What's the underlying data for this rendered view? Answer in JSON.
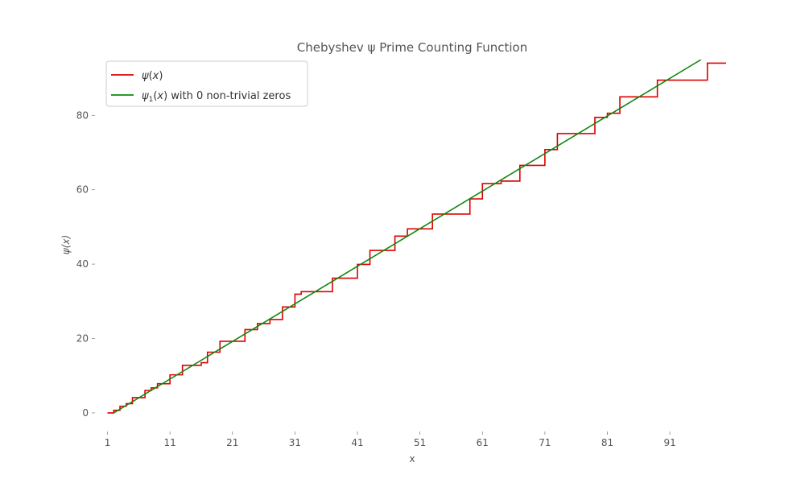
{
  "chart_data": {
    "type": "line",
    "title": "Chebyshev ψ Prime Counting Function",
    "xlabel": "x",
    "ylabel": "ψ(x)",
    "xlim": [
      -1,
      100
    ],
    "ylim": [
      -5,
      95
    ],
    "xticks": [
      1,
      11,
      21,
      31,
      41,
      51,
      61,
      71,
      81,
      91
    ],
    "yticks": [
      0,
      20,
      40,
      60,
      80
    ],
    "grid": false,
    "legend_position": "top-left",
    "series": [
      {
        "name": "ψ(x)",
        "label_italic_base": "ψ",
        "label_italic_arg": "x",
        "color": "#dd0000",
        "style": "step",
        "jumps": [
          {
            "x": 1,
            "y": 0.0
          },
          {
            "x": 2,
            "y": 0.693
          },
          {
            "x": 3,
            "y": 1.792
          },
          {
            "x": 4,
            "y": 2.485
          },
          {
            "x": 5,
            "y": 4.094
          },
          {
            "x": 7,
            "y": 6.04
          },
          {
            "x": 8,
            "y": 6.733
          },
          {
            "x": 9,
            "y": 7.832
          },
          {
            "x": 11,
            "y": 10.23
          },
          {
            "x": 13,
            "y": 12.795
          },
          {
            "x": 16,
            "y": 13.488
          },
          {
            "x": 17,
            "y": 16.321
          },
          {
            "x": 19,
            "y": 19.265
          },
          {
            "x": 23,
            "y": 22.401
          },
          {
            "x": 25,
            "y": 24.01
          },
          {
            "x": 27,
            "y": 25.108
          },
          {
            "x": 29,
            "y": 28.476
          },
          {
            "x": 31,
            "y": 31.91
          },
          {
            "x": 32,
            "y": 32.603
          },
          {
            "x": 37,
            "y": 36.214
          },
          {
            "x": 41,
            "y": 39.928
          },
          {
            "x": 43,
            "y": 43.689
          },
          {
            "x": 47,
            "y": 47.539
          },
          {
            "x": 49,
            "y": 49.485
          },
          {
            "x": 53,
            "y": 53.456
          },
          {
            "x": 59,
            "y": 57.533
          },
          {
            "x": 61,
            "y": 61.644
          },
          {
            "x": 64,
            "y": 62.337
          },
          {
            "x": 67,
            "y": 66.542
          },
          {
            "x": 71,
            "y": 70.805
          },
          {
            "x": 73,
            "y": 75.096
          },
          {
            "x": 79,
            "y": 79.465
          },
          {
            "x": 81,
            "y": 80.563
          },
          {
            "x": 83,
            "y": 84.982
          },
          {
            "x": 89,
            "y": 89.471
          },
          {
            "x": 97,
            "y": 94.046
          }
        ],
        "x_end": 100
      },
      {
        "name": "ψ₁(x) with 0 non-trivial zeros",
        "label_italic_base": "ψ",
        "label_subscript": "1",
        "label_italic_arg": "x",
        "label_suffix": " with 0 non-trivial zeros",
        "color": "#118811",
        "style": "line",
        "x": [
          2,
          96
        ],
        "y": [
          0.0,
          95.0
        ]
      }
    ]
  }
}
